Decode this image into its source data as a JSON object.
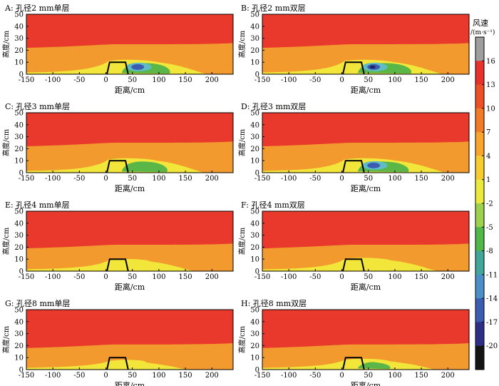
{
  "chart_data": [
    {
      "type": "heatmap",
      "title": "A: 孔径2 mm单层",
      "xlabel": "距离/cm",
      "ylabel": "高度/cm",
      "xlim": [
        -150,
        240
      ],
      "ylim": [
        0,
        50
      ],
      "xticks": [
        -150,
        -100,
        -50,
        0,
        50,
        100,
        150,
        200
      ],
      "yticks": [
        0,
        10,
        20,
        30,
        40,
        50
      ],
      "zones": {
        "red_base": 24,
        "orange_peak": 12,
        "yellow_extent": 165,
        "green_extent": 115,
        "cyan": true,
        "blue": true,
        "dark": false
      }
    },
    {
      "type": "heatmap",
      "title": "B: 孔径2 mm双层",
      "xlabel": "距离/cm",
      "ylabel": "高度/cm",
      "xlim": [
        -150,
        240
      ],
      "ylim": [
        0,
        50
      ],
      "xticks": [
        -150,
        -100,
        -50,
        0,
        50,
        100,
        150,
        200
      ],
      "yticks": [
        0,
        10,
        20,
        30,
        40,
        50
      ],
      "zones": {
        "red_base": 24,
        "orange_peak": 12,
        "yellow_extent": 165,
        "green_extent": 125,
        "cyan": true,
        "blue": true,
        "dark": true
      }
    },
    {
      "type": "heatmap",
      "title": "C: 孔径3 mm单层",
      "xlabel": "距离/cm",
      "ylabel": "高度/cm",
      "xlim": [
        -150,
        240
      ],
      "ylim": [
        0,
        50
      ],
      "xticks": [
        -150,
        -100,
        -50,
        0,
        50,
        100,
        150,
        200
      ],
      "yticks": [
        0,
        10,
        20,
        30,
        40,
        50
      ],
      "zones": {
        "red_base": 24,
        "orange_peak": 12,
        "yellow_extent": 160,
        "green_extent": 110,
        "cyan": false,
        "blue": false,
        "dark": false
      }
    },
    {
      "type": "heatmap",
      "title": "D: 孔径3 mm双层",
      "xlabel": "距离/cm",
      "ylabel": "高度/cm",
      "xlim": [
        -150,
        240
      ],
      "ylim": [
        0,
        50
      ],
      "xticks": [
        -150,
        -100,
        -50,
        0,
        50,
        100,
        150,
        200
      ],
      "yticks": [
        0,
        10,
        20,
        30,
        40,
        50
      ],
      "zones": {
        "red_base": 24,
        "orange_peak": 12,
        "yellow_extent": 170,
        "green_extent": 120,
        "cyan": true,
        "blue": true,
        "dark": false
      }
    },
    {
      "type": "heatmap",
      "title": "E: 孔径4 mm单层",
      "xlabel": "距离/cm",
      "ylabel": "高度/cm",
      "xlim": [
        -150,
        240
      ],
      "ylim": [
        0,
        50
      ],
      "xticks": [
        -150,
        -100,
        -50,
        0,
        50,
        100,
        150,
        200
      ],
      "yticks": [
        0,
        10,
        20,
        30,
        40,
        50
      ],
      "zones": {
        "red_base": 21,
        "orange_peak": 10,
        "yellow_extent": 140,
        "green_extent": 0,
        "cyan": false,
        "blue": false,
        "dark": false
      }
    },
    {
      "type": "heatmap",
      "title": "F: 孔径4 mm双层",
      "xlabel": "距离/cm",
      "ylabel": "高度/cm",
      "xlim": [
        -150,
        240
      ],
      "ylim": [
        0,
        50
      ],
      "xticks": [
        -150,
        -100,
        -50,
        0,
        50,
        100,
        150,
        200
      ],
      "yticks": [
        0,
        10,
        20,
        30,
        40,
        50
      ],
      "zones": {
        "red_base": 21,
        "orange_peak": 11,
        "yellow_extent": 155,
        "green_extent": 0,
        "cyan": false,
        "blue": false,
        "dark": false
      }
    },
    {
      "type": "heatmap",
      "title": "G: 孔径8 mm单层",
      "xlabel": "距离/cm",
      "ylabel": "高度/cm",
      "xlim": [
        -150,
        240
      ],
      "ylim": [
        0,
        50
      ],
      "xticks": [
        -150,
        -100,
        -50,
        0,
        50,
        100,
        150,
        200
      ],
      "yticks": [
        0,
        10,
        20,
        30,
        40,
        50
      ],
      "zones": {
        "red_base": 20,
        "orange_peak": 8,
        "yellow_extent": 125,
        "green_extent": 0,
        "cyan": false,
        "blue": false,
        "dark": false
      }
    },
    {
      "type": "heatmap",
      "title": "H: 孔径8 mm双层",
      "xlabel": "距离/cm",
      "ylabel": "高度/cm",
      "xlim": [
        -150,
        240
      ],
      "ylim": [
        0,
        50
      ],
      "xticks": [
        -150,
        -100,
        -50,
        0,
        50,
        100,
        150,
        200
      ],
      "yticks": [
        0,
        10,
        20,
        30,
        40,
        50
      ],
      "zones": {
        "red_base": 20,
        "orange_peak": 9,
        "yellow_extent": 150,
        "green_extent": 85,
        "cyan": false,
        "blue": false,
        "dark": false
      }
    }
  ],
  "colorbar": {
    "title": "风速",
    "unit": "/(m·s⁻¹)",
    "levels": [
      16,
      13,
      10,
      7,
      4,
      1,
      -2,
      -5,
      -8,
      -11,
      -14,
      -17,
      -20
    ],
    "colors": [
      "#9e9e9e",
      "#e8312a",
      "#ee4f26",
      "#f37b27",
      "#f9a52c",
      "#f6cc31",
      "#eaea3c",
      "#9ed14b",
      "#4fb849",
      "#42a79a",
      "#4a8fc8",
      "#3b5cb0",
      "#2d2f86",
      "#141414"
    ]
  },
  "colors": {
    "red": "#e8392c",
    "orange": "#f29a2e",
    "yellow": "#f2e63a",
    "green": "#5ab647",
    "cyan": "#5fbcc4",
    "blue": "#3b5cb0",
    "dark": "#222266",
    "structure": "#000000"
  }
}
